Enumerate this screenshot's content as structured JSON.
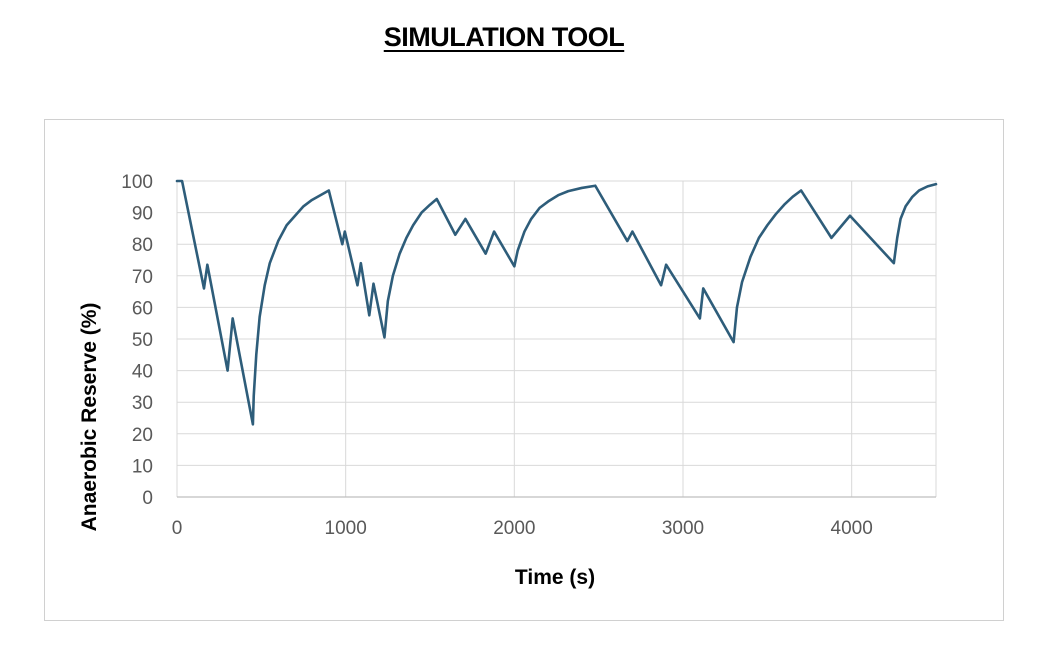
{
  "page": {
    "title": "SIMULATION TOOL"
  },
  "chart_data": {
    "type": "line",
    "xlabel": "Time (s)",
    "ylabel": "Anaerobic Reserve (%)",
    "xlim": [
      0,
      4500
    ],
    "ylim": [
      0,
      100
    ],
    "x_ticks": [
      0,
      1000,
      2000,
      3000,
      4000
    ],
    "y_ticks": [
      0,
      10,
      20,
      30,
      40,
      50,
      60,
      70,
      80,
      90,
      100
    ],
    "grid": true,
    "legend": "none",
    "line_color": "#2e5d7a",
    "series": [
      {
        "points": [
          [
            0,
            100
          ],
          [
            30,
            100
          ],
          [
            160,
            66
          ],
          [
            180,
            73.5
          ],
          [
            300,
            40
          ],
          [
            330,
            56.5
          ],
          [
            450,
            23
          ],
          [
            455,
            32
          ],
          [
            470,
            45
          ],
          [
            490,
            57
          ],
          [
            520,
            67
          ],
          [
            550,
            74
          ],
          [
            600,
            81
          ],
          [
            650,
            86
          ],
          [
            700,
            89
          ],
          [
            750,
            92
          ],
          [
            800,
            94
          ],
          [
            850,
            95.5
          ],
          [
            900,
            97
          ],
          [
            980,
            80
          ],
          [
            995,
            84
          ],
          [
            1070,
            67
          ],
          [
            1090,
            74
          ],
          [
            1140,
            57.5
          ],
          [
            1165,
            67.5
          ],
          [
            1230,
            50.5
          ],
          [
            1250,
            62
          ],
          [
            1280,
            70
          ],
          [
            1320,
            77
          ],
          [
            1360,
            82
          ],
          [
            1400,
            86
          ],
          [
            1450,
            90
          ],
          [
            1500,
            92.5
          ],
          [
            1540,
            94.3
          ],
          [
            1650,
            83
          ],
          [
            1710,
            88
          ],
          [
            1830,
            77
          ],
          [
            1880,
            84
          ],
          [
            2000,
            73
          ],
          [
            2020,
            78
          ],
          [
            2060,
            84
          ],
          [
            2100,
            88
          ],
          [
            2150,
            91.5
          ],
          [
            2200,
            93.5
          ],
          [
            2260,
            95.5
          ],
          [
            2320,
            96.8
          ],
          [
            2400,
            97.8
          ],
          [
            2480,
            98.5
          ],
          [
            2670,
            81
          ],
          [
            2700,
            84
          ],
          [
            2870,
            67
          ],
          [
            2900,
            73.5
          ],
          [
            3100,
            56.5
          ],
          [
            3120,
            66
          ],
          [
            3300,
            49
          ],
          [
            3320,
            60
          ],
          [
            3350,
            68
          ],
          [
            3400,
            76
          ],
          [
            3450,
            82
          ],
          [
            3500,
            86
          ],
          [
            3550,
            89.5
          ],
          [
            3600,
            92.5
          ],
          [
            3650,
            95
          ],
          [
            3700,
            97
          ],
          [
            3880,
            82
          ],
          [
            3990,
            89
          ],
          [
            4250,
            74
          ],
          [
            4270,
            82
          ],
          [
            4290,
            88
          ],
          [
            4320,
            92
          ],
          [
            4360,
            95
          ],
          [
            4400,
            97
          ],
          [
            4450,
            98.3
          ],
          [
            4500,
            99
          ]
        ]
      }
    ]
  }
}
